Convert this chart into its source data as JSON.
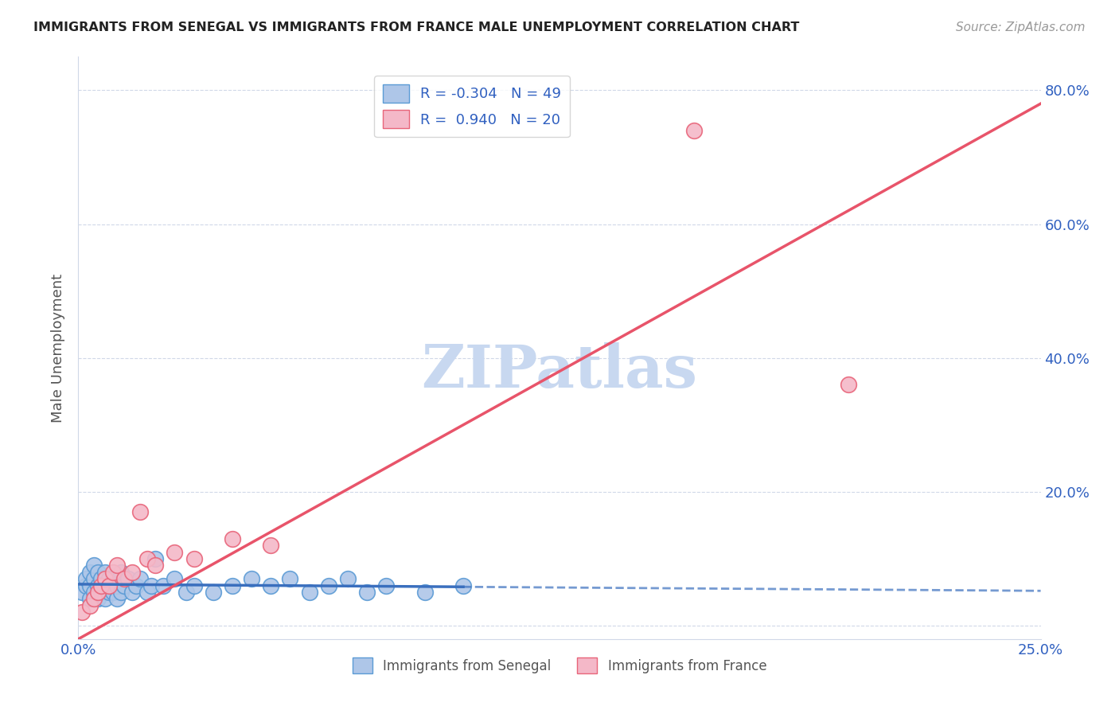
{
  "title": "IMMIGRANTS FROM SENEGAL VS IMMIGRANTS FROM FRANCE MALE UNEMPLOYMENT CORRELATION CHART",
  "source": "Source: ZipAtlas.com",
  "ylabel": "Male Unemployment",
  "xlim": [
    0.0,
    0.25
  ],
  "ylim": [
    -0.02,
    0.85
  ],
  "xticks": [
    0.0,
    0.05,
    0.1,
    0.15,
    0.2,
    0.25
  ],
  "xtick_labels": [
    "0.0%",
    "",
    "",
    "",
    "",
    "25.0%"
  ],
  "yticks": [
    0.0,
    0.2,
    0.4,
    0.6,
    0.8
  ],
  "ytick_labels_right": [
    "",
    "20.0%",
    "40.0%",
    "60.0%",
    "80.0%"
  ],
  "senegal_R": -0.304,
  "senegal_N": 49,
  "france_R": 0.94,
  "france_N": 20,
  "senegal_color": "#aec6e8",
  "senegal_edge": "#5b9bd5",
  "france_color": "#f4b8c8",
  "france_edge": "#e8657a",
  "trendline_senegal_color": "#3a6fbe",
  "trendline_france_color": "#e8546a",
  "watermark": "ZIPatlas",
  "watermark_color": "#c8d8f0",
  "background_color": "#ffffff",
  "grid_color": "#d0d8e8",
  "senegal_x": [
    0.001,
    0.002,
    0.002,
    0.003,
    0.003,
    0.003,
    0.004,
    0.004,
    0.004,
    0.005,
    0.005,
    0.005,
    0.006,
    0.006,
    0.007,
    0.007,
    0.007,
    0.008,
    0.008,
    0.009,
    0.009,
    0.01,
    0.01,
    0.011,
    0.011,
    0.012,
    0.013,
    0.014,
    0.015,
    0.016,
    0.018,
    0.019,
    0.02,
    0.022,
    0.025,
    0.028,
    0.03,
    0.035,
    0.04,
    0.045,
    0.05,
    0.055,
    0.06,
    0.065,
    0.07,
    0.075,
    0.08,
    0.09,
    0.1
  ],
  "senegal_y": [
    0.05,
    0.06,
    0.07,
    0.04,
    0.06,
    0.08,
    0.05,
    0.07,
    0.09,
    0.04,
    0.06,
    0.08,
    0.05,
    0.07,
    0.04,
    0.06,
    0.08,
    0.05,
    0.07,
    0.05,
    0.07,
    0.04,
    0.06,
    0.05,
    0.08,
    0.06,
    0.07,
    0.05,
    0.06,
    0.07,
    0.05,
    0.06,
    0.1,
    0.06,
    0.07,
    0.05,
    0.06,
    0.05,
    0.06,
    0.07,
    0.06,
    0.07,
    0.05,
    0.06,
    0.07,
    0.05,
    0.06,
    0.05,
    0.06
  ],
  "france_x": [
    0.001,
    0.003,
    0.004,
    0.005,
    0.006,
    0.007,
    0.008,
    0.009,
    0.01,
    0.012,
    0.014,
    0.016,
    0.018,
    0.02,
    0.025,
    0.03,
    0.04,
    0.05,
    0.16,
    0.2
  ],
  "france_y": [
    0.02,
    0.03,
    0.04,
    0.05,
    0.06,
    0.07,
    0.06,
    0.08,
    0.09,
    0.07,
    0.08,
    0.17,
    0.1,
    0.09,
    0.11,
    0.1,
    0.13,
    0.12,
    0.74,
    0.36
  ]
}
